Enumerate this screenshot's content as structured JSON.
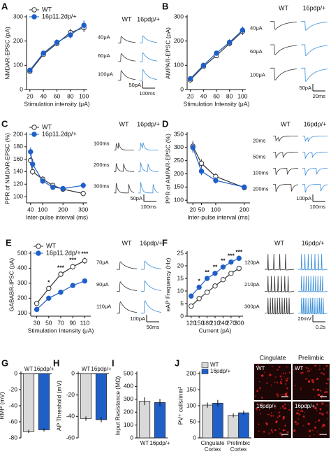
{
  "chart_data": [
    {
      "panel": "A",
      "type": "line",
      "y_label": "NMDAR-EPSC (pA)",
      "x_label": "Stimulation intensity (μA)",
      "x": [
        20,
        40,
        60,
        80,
        100
      ],
      "xlim": [
        15,
        105
      ],
      "xticks": [
        20,
        40,
        60,
        80,
        100
      ],
      "ylim": [
        0,
        300
      ],
      "yticks": [
        0,
        100,
        200,
        300
      ],
      "legend": "upper left",
      "series": [
        {
          "name": "WT",
          "color": "#333333",
          "marker_fill": "#ffffff",
          "values": [
            75,
            145,
            190,
            235,
            255
          ],
          "errors": [
            8,
            10,
            12,
            15,
            18
          ]
        },
        {
          "name": "16p11.2dp/+",
          "color": "#1f5fc8",
          "marker_fill": "#1f5fc8",
          "values": [
            80,
            150,
            195,
            225,
            265
          ],
          "errors": [
            8,
            10,
            12,
            15,
            20
          ]
        }
      ],
      "inset": {
        "columns": [
          "WT",
          "16pdp/+"
        ],
        "rows": [
          "40μA",
          "60μA",
          "100μA"
        ],
        "scale": [
          "50pA",
          "100ms"
        ]
      }
    },
    {
      "panel": "B",
      "type": "line",
      "y_label": "AMPAR-EPSC (pA)",
      "x_label": "Stimulation Intensity (μA)",
      "x": [
        20,
        40,
        60,
        80,
        100
      ],
      "xlim": [
        15,
        105
      ],
      "xticks": [
        20,
        40,
        60,
        80,
        100
      ],
      "ylim": [
        0,
        300
      ],
      "yticks": [
        0,
        100,
        200,
        300
      ],
      "series": [
        {
          "color": "#333333",
          "marker_fill": "#ffffff",
          "values": [
            40,
            95,
            140,
            190,
            240
          ],
          "errors": [
            5,
            8,
            10,
            12,
            15
          ]
        },
        {
          "color": "#1f5fc8",
          "marker_fill": "#1f5fc8",
          "values": [
            45,
            100,
            150,
            195,
            245
          ],
          "errors": [
            5,
            8,
            10,
            12,
            15
          ]
        }
      ],
      "inset": {
        "columns": [
          "WT",
          "16pdp/+"
        ],
        "rows": [
          "40μA",
          "60μA",
          "100μA"
        ],
        "scale": [
          "50pA",
          "20ms"
        ]
      }
    },
    {
      "panel": "C",
      "type": "line",
      "y_label": "PPR of NMDAR-EPSC (%)",
      "x_label": "Inter-pulse interval (ms)",
      "x": [
        40,
        50,
        100,
        150,
        200,
        300
      ],
      "xlim": [
        20,
        320
      ],
      "xticks": [
        40,
        100,
        200,
        300
      ],
      "ylim": [
        90,
        200
      ],
      "yticks": [
        100,
        120,
        140,
        160,
        180,
        200
      ],
      "legend": "upper left",
      "series": [
        {
          "name": "WT",
          "color": "#333333",
          "marker_fill": "#ffffff",
          "values": [
            158,
            140,
            128,
            118,
            112,
            105
          ],
          "errors": [
            6,
            5,
            5,
            4,
            4,
            3
          ]
        },
        {
          "name": "16p11.2dp/+",
          "color": "#1f5fc8",
          "marker_fill": "#1f5fc8",
          "values": [
            172,
            152,
            125,
            115,
            113,
            118
          ],
          "errors": [
            7,
            6,
            5,
            4,
            4,
            5
          ]
        }
      ],
      "inset": {
        "columns": [
          "WT",
          "16pdp/+"
        ],
        "rows": [
          "100ms",
          "200ms",
          "300ms"
        ],
        "scale": [
          "50pA",
          "100ms"
        ]
      }
    },
    {
      "panel": "D",
      "type": "line",
      "y_label": "PPR of AMPAR-EPSC (%)",
      "x_label": "Inter-pulse interval (ms)",
      "x": [
        20,
        50,
        100,
        200
      ],
      "xlim": [
        0,
        220
      ],
      "xticks": [
        20,
        50,
        100,
        200
      ],
      "ylim": [
        90,
        350
      ],
      "yticks": [
        100,
        150,
        200,
        250,
        300,
        350
      ],
      "series": [
        {
          "color": "#333333",
          "marker_fill": "#ffffff",
          "values": [
            305,
            240,
            190,
            148
          ],
          "errors": [
            20,
            15,
            12,
            8
          ]
        },
        {
          "color": "#1f5fc8",
          "marker_fill": "#1f5fc8",
          "values": [
            300,
            210,
            175,
            150
          ],
          "errors": [
            20,
            15,
            12,
            8
          ]
        }
      ],
      "inset": {
        "columns": [
          "WT",
          "16pdp/+"
        ],
        "rows": [
          "20ms",
          "50ms",
          "100ms",
          "200ms"
        ],
        "scale": [
          "100pA",
          "100ms"
        ]
      }
    },
    {
      "panel": "E",
      "type": "line",
      "y_label": "GABABR-IPSC (pA)",
      "x_label": "Stimulation Intensity (μA)",
      "x": [
        30,
        50,
        70,
        90,
        110
      ],
      "xlim": [
        20,
        120
      ],
      "xticks": [
        30,
        50,
        70,
        90,
        110
      ],
      "ylim": [
        80,
        500
      ],
      "yticks": [
        100,
        200,
        300,
        400,
        500
      ],
      "legend": "upper left",
      "series": [
        {
          "name": "WT",
          "color": "#333333",
          "marker_fill": "#ffffff",
          "values": [
            165,
            265,
            360,
            410,
            450
          ],
          "errors": [
            12,
            15,
            18,
            20,
            22
          ]
        },
        {
          "name": "16p11.2dp/+",
          "color": "#1f5fc8",
          "marker_fill": "#1f5fc8",
          "values": [
            125,
            200,
            240,
            285,
            315
          ],
          "errors": [
            10,
            10,
            12,
            12,
            14
          ]
        }
      ],
      "significance": [
        {
          "x": 50,
          "label": "*"
        },
        {
          "x": 70,
          "label": "***"
        },
        {
          "x": 90,
          "label": "***"
        },
        {
          "x": 110,
          "label": "***"
        }
      ],
      "inset": {
        "columns": [
          "WT",
          "16pdp/+"
        ],
        "rows": [
          "70μA",
          "90μA",
          "110μA"
        ],
        "scale": [
          "100pA",
          "50ms"
        ]
      }
    },
    {
      "panel": "F",
      "type": "line",
      "y_label": "eAP Frequency (Hz)",
      "x_label": "Current (pA)",
      "x": [
        120,
        150,
        180,
        210,
        240,
        270,
        300
      ],
      "xlim": [
        105,
        315
      ],
      "xticks": [
        120,
        150,
        180,
        210,
        240,
        270,
        300
      ],
      "ylim": [
        0,
        25
      ],
      "yticks": [
        0,
        5,
        10,
        15,
        20,
        25
      ],
      "series": [
        {
          "color": "#333333",
          "marker_fill": "#ffffff",
          "values": [
            4,
            7,
            9.5,
            12,
            14.5,
            17,
            19
          ],
          "errors": [
            0.6,
            0.7,
            0.8,
            0.8,
            0.9,
            0.9,
            1
          ]
        },
        {
          "color": "#1f5fc8",
          "marker_fill": "#1f5fc8",
          "values": [
            8,
            11.5,
            15,
            17,
            19.5,
            21.5,
            23
          ],
          "errors": [
            0.8,
            0.9,
            0.9,
            1,
            1,
            1,
            1
          ]
        }
      ],
      "significance": [
        {
          "x": 150,
          "label": "*"
        },
        {
          "x": 180,
          "label": "**"
        },
        {
          "x": 210,
          "label": "**"
        },
        {
          "x": 240,
          "label": "**"
        },
        {
          "x": 270,
          "label": "***"
        },
        {
          "x": 300,
          "label": "***"
        }
      ],
      "inset": {
        "columns": [
          "WT",
          "16pdp/+"
        ],
        "rows": [
          "120pA",
          "210pA",
          "300pA"
        ],
        "scale": [
          "20mV",
          "0.2s"
        ]
      }
    },
    {
      "panel": "G",
      "type": "bar",
      "y_label": "RMP (mV)",
      "categories": [
        "WT",
        "16pdp/+"
      ],
      "values": [
        -72,
        -70
      ],
      "errors": [
        2,
        2
      ],
      "colors": [
        "#d9d9d9",
        "#1f5fc8"
      ],
      "ylim": [
        -80,
        0
      ],
      "yticks": [
        -80,
        -60,
        -40,
        -20,
        0
      ]
    },
    {
      "panel": "H",
      "type": "bar",
      "y_label": "AP Threshold (mV)",
      "categories": [
        "WT",
        "16pdp/+"
      ],
      "values": [
        -42,
        -43
      ],
      "errors": [
        2,
        2.5
      ],
      "colors": [
        "#d9d9d9",
        "#1f5fc8"
      ],
      "ylim": [
        -60,
        0
      ],
      "yticks": [
        -60,
        -40,
        -20,
        0
      ]
    },
    {
      "panel": "I",
      "type": "bar",
      "y_label": "Input Resistance (MΩ)",
      "categories": [
        "WT",
        "16pdp/+"
      ],
      "values": [
        285,
        275
      ],
      "errors": [
        30,
        28
      ],
      "colors": [
        "#d9d9d9",
        "#1f5fc8"
      ],
      "ylim": [
        0,
        500
      ],
      "yticks": [
        0,
        100,
        200,
        300,
        400,
        500
      ]
    },
    {
      "panel": "J",
      "type": "bar",
      "y_label": "PV⁺ cells/mm²",
      "categories": [
        "Cingulate Cortex",
        "Prelimbic Cortex"
      ],
      "series": [
        {
          "name": "WT",
          "color": "#d9d9d9",
          "values": [
            102,
            70
          ],
          "errors": [
            8,
            6
          ]
        },
        {
          "name": "16pdp/+",
          "color": "#1f5fc8",
          "values": [
            108,
            78
          ],
          "errors": [
            10,
            7
          ]
        }
      ],
      "legend": "upper left",
      "ylim": [
        0,
        200
      ],
      "yticks": [
        0,
        50,
        100,
        150,
        200
      ]
    }
  ],
  "micrographs": {
    "columns": [
      "Cingulate",
      "Prelimbic"
    ],
    "rows": [
      "WT",
      "16pdp/+"
    ]
  }
}
